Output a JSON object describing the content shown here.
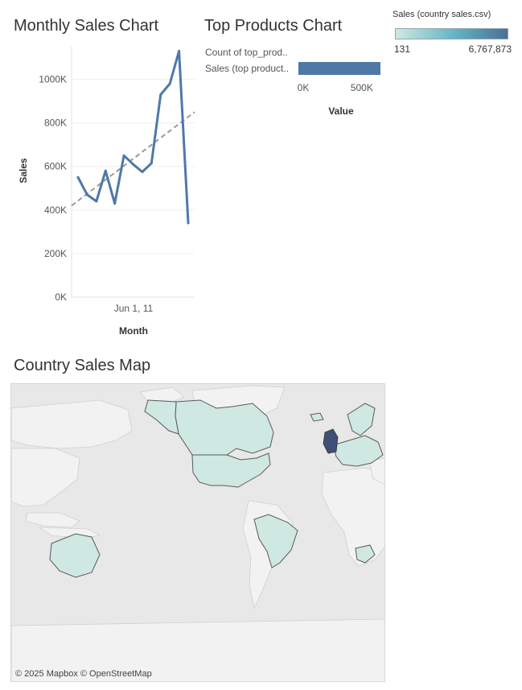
{
  "titles": {
    "monthly": "Monthly Sales Chart",
    "top": "Top Products Chart",
    "map": "Country Sales Map"
  },
  "legend": {
    "title": "Sales (country sales.csv)",
    "min": "131",
    "max": "6,767,873",
    "color_low": "#cfe8e1",
    "color_mid": "#5fb2c4",
    "color_high": "#4a6f96"
  },
  "map": {
    "attribution": "© 2025 Mapbox  © OpenStreetMap",
    "land_color": "#f2f2f2",
    "water_color": "#e8e8e8",
    "highlight_color": "#cfe8e1",
    "top_country_color": "#3f4f77"
  },
  "chart_data": [
    {
      "type": "line",
      "title": "Monthly Sales Chart",
      "xlabel": "Month",
      "ylabel": "Sales",
      "x_tick_labels": [
        "Jun 1, 11"
      ],
      "y_tick_labels": [
        "0K",
        "200K",
        "400K",
        "600K",
        "800K",
        "1000K"
      ],
      "ylim": [
        0,
        1150000
      ],
      "series": [
        {
          "values": [
            550000,
            470000,
            440000,
            580000,
            430000,
            650000,
            610000,
            575000,
            615000,
            930000,
            980000,
            1130000,
            340000
          ]
        }
      ],
      "trend_line": {
        "start": 420000,
        "end": 850000
      },
      "grid": true,
      "line_color": "#4e79a7",
      "trend_color": "#9a9a9a"
    },
    {
      "type": "bar",
      "title": "Top Products Chart",
      "orientation": "horizontal",
      "categories": [
        "Count of top_prod..",
        "Sales (top product.."
      ],
      "values": [
        0,
        700000
      ],
      "xlabel": "Value",
      "x_tick_labels": [
        "0K",
        "500K"
      ],
      "xlim": [
        0,
        700000
      ],
      "bar_color": "#4e79a7"
    }
  ]
}
